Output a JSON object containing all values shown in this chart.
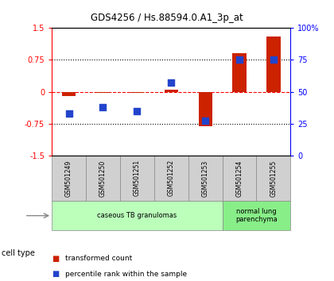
{
  "title": "GDS4256 / Hs.88594.0.A1_3p_at",
  "samples": [
    "GSM501249",
    "GSM501250",
    "GSM501251",
    "GSM501252",
    "GSM501253",
    "GSM501254",
    "GSM501255"
  ],
  "transformed_count": [
    -0.1,
    -0.02,
    -0.02,
    0.05,
    -0.82,
    0.9,
    1.3
  ],
  "percentile_rank": [
    33,
    38,
    35,
    57,
    27,
    75,
    75
  ],
  "ylim_left": [
    -1.5,
    1.5
  ],
  "ylim_right": [
    0,
    100
  ],
  "yticks_left": [
    -1.5,
    -0.75,
    0,
    0.75,
    1.5
  ],
  "yticks_right": [
    0,
    25,
    50,
    75,
    100
  ],
  "ytick_labels_right": [
    "0",
    "25",
    "50",
    "75",
    "100%"
  ],
  "hlines_dotted": [
    0.75,
    -0.75
  ],
  "bar_color": "#cc2200",
  "dot_color": "#2244cc",
  "cell_type_groups": [
    {
      "label": "caseous TB granulomas",
      "start": 0,
      "end": 5,
      "color": "#bbffbb"
    },
    {
      "label": "normal lung\nparenchyma",
      "start": 5,
      "end": 7,
      "color": "#88ee88"
    }
  ],
  "legend_items": [
    {
      "color": "#cc2200",
      "label": "transformed count"
    },
    {
      "color": "#2244cc",
      "label": "percentile rank within the sample"
    }
  ],
  "cell_type_label": "cell type",
  "background_color": "#ffffff"
}
